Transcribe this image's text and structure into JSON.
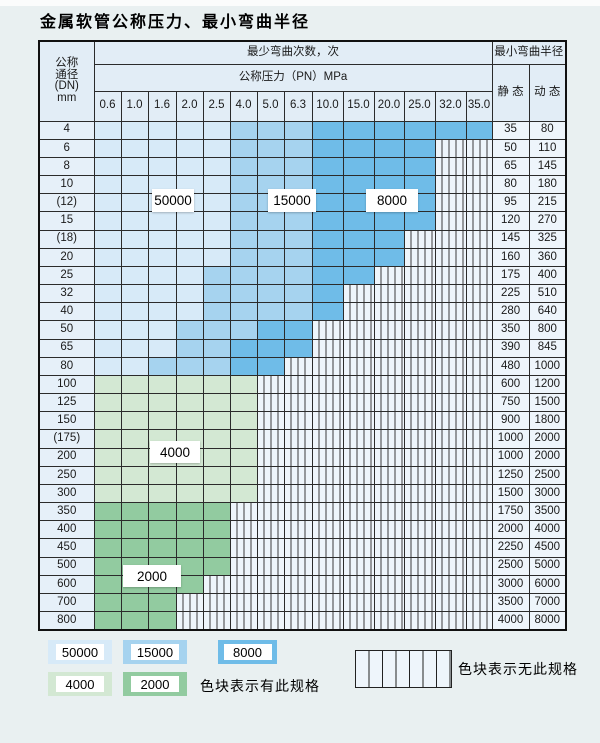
{
  "page_title": "金属软管公称压力、最小弯曲半径",
  "colors": {
    "c50000": "#d7eaf8",
    "c15000": "#a6d3ef",
    "c8000": "#6fbce8",
    "c4000": "#d3e8d3",
    "c2000": "#92cba0",
    "hatch_bg": "#eef5fb",
    "header_bg": "#e2edf6",
    "label_bg": "#e6f0f9",
    "value_bg": "#eef5fb"
  },
  "table": {
    "header": {
      "dn_lines": [
        "公称",
        "通径",
        "(DN)",
        "mm"
      ],
      "cycles_title": "最少弯曲次数，次",
      "pressure_title": "公称压力（PN）MPa",
      "pressures": [
        "0.6",
        "1.0",
        "1.6",
        "2.0",
        "2.5",
        "4.0",
        "5.0",
        "6.3",
        "10.0",
        "15.0",
        "20.0",
        "25.0",
        "32.0",
        "35.0"
      ],
      "radius_title": "最小弯曲半径",
      "static_label": "静 态",
      "dynamic_label": "动 态"
    },
    "cell_code_legend": {
      "5": "50000次",
      "1": "15000次",
      "8": "8000次",
      "4": "4000次",
      "2": "2000次",
      "x": "无此规格"
    },
    "rows": [
      {
        "dn": "4",
        "codes": "55555111888888",
        "static": "35",
        "dynamic": "80"
      },
      {
        "dn": "6",
        "codes": "555551118888xx",
        "static": "50",
        "dynamic": "110"
      },
      {
        "dn": "8",
        "codes": "555551118888xx",
        "static": "65",
        "dynamic": "145"
      },
      {
        "dn": "10",
        "codes": "555551118888xx",
        "static": "80",
        "dynamic": "180"
      },
      {
        "dn": "(12)",
        "codes": "555551118888xx",
        "static": "95",
        "dynamic": "215"
      },
      {
        "dn": "15",
        "codes": "555551118888xx",
        "static": "120",
        "dynamic": "270"
      },
      {
        "dn": "(18)",
        "codes": "55555111888xxx",
        "static": "145",
        "dynamic": "325"
      },
      {
        "dn": "20",
        "codes": "55555111888xxx",
        "static": "160",
        "dynamic": "360"
      },
      {
        "dn": "25",
        "codes": "5555111188xxxx",
        "static": "175",
        "dynamic": "400"
      },
      {
        "dn": "32",
        "codes": "555511118xxxxx",
        "static": "225",
        "dynamic": "510"
      },
      {
        "dn": "40",
        "codes": "555511118xxxxx",
        "static": "280",
        "dynamic": "640"
      },
      {
        "dn": "50",
        "codes": "55511188xxxxxx",
        "static": "350",
        "dynamic": "800"
      },
      {
        "dn": "65",
        "codes": "55511888xxxxxx",
        "static": "390",
        "dynamic": "845"
      },
      {
        "dn": "80",
        "codes": "5511188xxxxxxx",
        "static": "480",
        "dynamic": "1000"
      },
      {
        "dn": "100",
        "codes": "444444xxxxxxxx",
        "static": "600",
        "dynamic": "1200"
      },
      {
        "dn": "125",
        "codes": "444444xxxxxxxx",
        "static": "750",
        "dynamic": "1500"
      },
      {
        "dn": "150",
        "codes": "444444xxxxxxxx",
        "static": "900",
        "dynamic": "1800"
      },
      {
        "dn": "(175)",
        "codes": "444444xxxxxxxx",
        "static": "1000",
        "dynamic": "2000"
      },
      {
        "dn": "200",
        "codes": "444444xxxxxxxx",
        "static": "1000",
        "dynamic": "2000"
      },
      {
        "dn": "250",
        "codes": "444444xxxxxxxx",
        "static": "1250",
        "dynamic": "2500"
      },
      {
        "dn": "300",
        "codes": "444444xxxxxxxx",
        "static": "1500",
        "dynamic": "3000"
      },
      {
        "dn": "350",
        "codes": "22222xxxxxxxxx",
        "static": "1750",
        "dynamic": "3500"
      },
      {
        "dn": "400",
        "codes": "22222xxxxxxxxx",
        "static": "2000",
        "dynamic": "4000"
      },
      {
        "dn": "450",
        "codes": "22222xxxxxxxxx",
        "static": "2250",
        "dynamic": "4500"
      },
      {
        "dn": "500",
        "codes": "22222xxxxxxxxx",
        "static": "2500",
        "dynamic": "5000"
      },
      {
        "dn": "600",
        "codes": "2222xxxxxxxxxx",
        "static": "3000",
        "dynamic": "6000"
      },
      {
        "dn": "700",
        "codes": "222xxxxxxxxxxx",
        "static": "3500",
        "dynamic": "7000"
      },
      {
        "dn": "800",
        "codes": "222xxxxxxxxxxx",
        "static": "4000",
        "dynamic": "8000"
      }
    ]
  },
  "overlays": {
    "l50000": "50000",
    "l15000": "15000",
    "l8000": "8000",
    "l4000": "4000",
    "l2000": "2000"
  },
  "legend": {
    "items": [
      {
        "value": "50000",
        "color": "#d7eaf8"
      },
      {
        "value": "15000",
        "color": "#a6d3ef"
      },
      {
        "value": "8000",
        "color": "#6fbce8"
      },
      {
        "value": "4000",
        "color": "#d3e8d3"
      },
      {
        "value": "2000",
        "color": "#92cba0"
      }
    ],
    "present_note": "色块表示有此规格",
    "absent_note": "色块表示无此规格"
  }
}
